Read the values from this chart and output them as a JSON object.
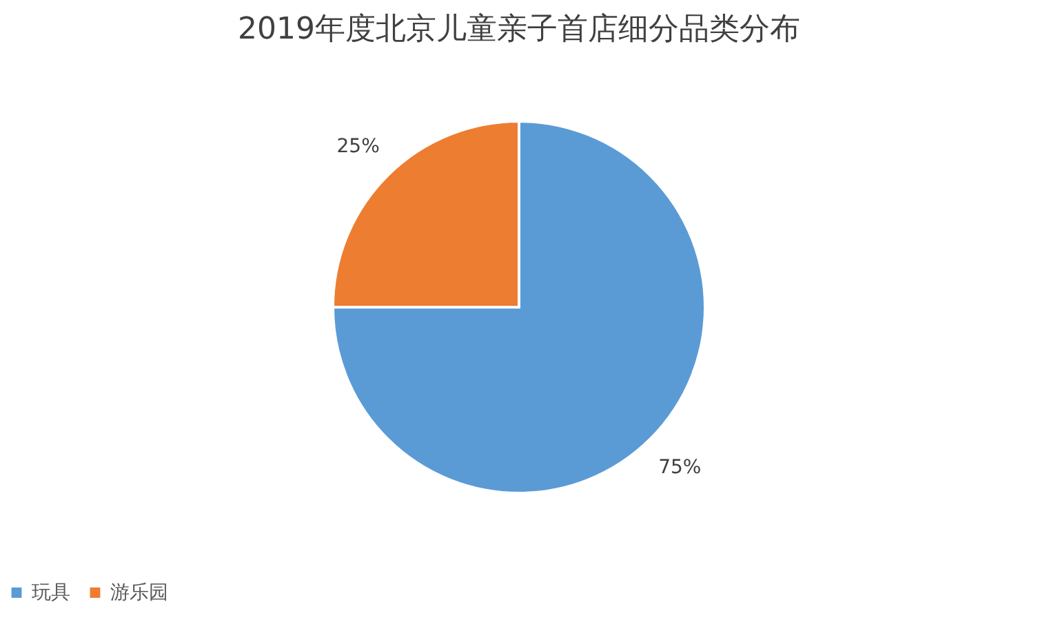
{
  "chart_data": {
    "type": "pie",
    "title": "2019年度北京儿童亲子首店细分品类分布",
    "categories": [
      "玩具",
      "游乐园"
    ],
    "values": [
      75,
      25
    ],
    "colors": [
      "#5b9bd5",
      "#ed7d31"
    ],
    "value_labels": [
      "75%",
      "25%"
    ],
    "legend": "bottom"
  }
}
